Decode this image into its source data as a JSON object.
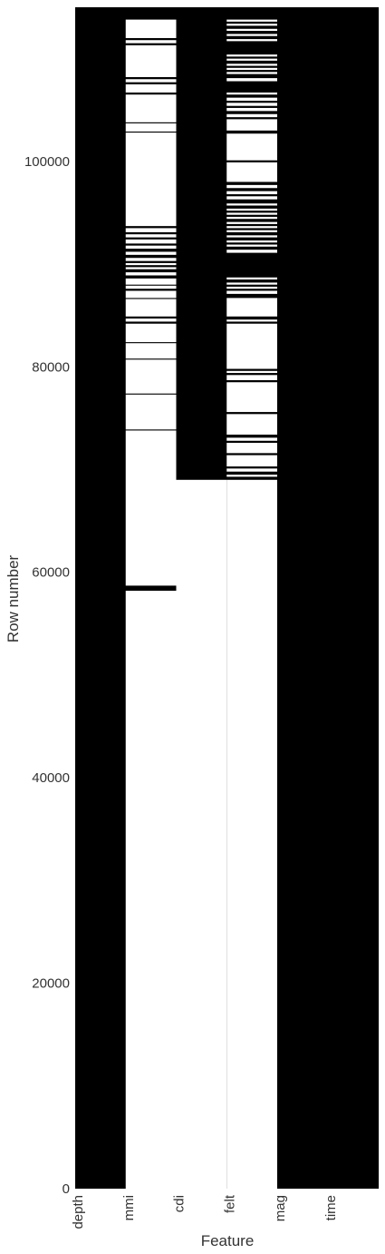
{
  "chart_data": {
    "type": "heatmap",
    "title": "",
    "xlabel": "Feature",
    "ylabel": "Row number",
    "ylim": [
      0,
      115000
    ],
    "y_ticks": [
      0,
      20000,
      40000,
      60000,
      80000,
      100000
    ],
    "grid": false,
    "legend": "none",
    "present_color": "#000000",
    "missing_color": "#ffffff",
    "columns": [
      {
        "name": "depth",
        "missing_rows": []
      },
      {
        "name": "mmi",
        "missing_rows": [
          [
            0,
            58200
          ],
          [
            58700,
            73800
          ],
          [
            73900,
            77300
          ],
          [
            77400,
            80700
          ],
          [
            80800,
            82300
          ],
          [
            82400,
            84200
          ],
          [
            84400,
            84700
          ],
          [
            84900,
            86600
          ],
          [
            86700,
            87400
          ],
          [
            87600,
            87900
          ],
          [
            88000,
            88600
          ],
          [
            88900,
            89200
          ],
          [
            89500,
            89700
          ],
          [
            89900,
            90100
          ],
          [
            90300,
            90600
          ],
          [
            90900,
            91200
          ],
          [
            91500,
            91800
          ],
          [
            92000,
            92400
          ],
          [
            92600,
            92900
          ],
          [
            93100,
            93500
          ],
          [
            93700,
            102800
          ],
          [
            102900,
            103700
          ],
          [
            103800,
            106500
          ],
          [
            106700,
            107500
          ],
          [
            107700,
            108000
          ],
          [
            108200,
            111300
          ],
          [
            111500,
            111800
          ],
          [
            112000,
            113800
          ]
        ]
      },
      {
        "name": "cdi",
        "missing_rows": [
          [
            0,
            69000
          ]
        ]
      },
      {
        "name": "felt",
        "missing_rows": [
          [
            0,
            69000
          ],
          [
            69300,
            69500
          ],
          [
            69800,
            70100
          ],
          [
            70300,
            71400
          ],
          [
            71600,
            72600
          ],
          [
            72800,
            73100
          ],
          [
            73400,
            75400
          ],
          [
            75600,
            78500
          ],
          [
            78700,
            79200
          ],
          [
            79400,
            79600
          ],
          [
            79800,
            84200
          ],
          [
            84400,
            84600
          ],
          [
            84900,
            86700
          ],
          [
            87100,
            87400
          ],
          [
            87600,
            87800
          ],
          [
            88000,
            88200
          ],
          [
            88500,
            88700
          ],
          [
            91100,
            91400
          ],
          [
            91700,
            91900
          ],
          [
            92100,
            92300
          ],
          [
            92600,
            92800
          ],
          [
            93100,
            93300
          ],
          [
            93500,
            93700
          ],
          [
            93900,
            94100
          ],
          [
            94400,
            94600
          ],
          [
            94800,
            95000
          ],
          [
            95200,
            95400
          ],
          [
            95700,
            95900
          ],
          [
            96300,
            96600
          ],
          [
            96800,
            97100
          ],
          [
            97400,
            97700
          ],
          [
            98000,
            99900
          ],
          [
            100100,
            102700
          ],
          [
            103000,
            104100
          ],
          [
            104300,
            104600
          ],
          [
            104900,
            105200
          ],
          [
            105400,
            105700
          ],
          [
            105900,
            106200
          ],
          [
            106500,
            106700
          ],
          [
            107800,
            108100
          ],
          [
            108500,
            108700
          ],
          [
            108900,
            109100
          ],
          [
            109300,
            109500
          ],
          [
            109800,
            110000
          ],
          [
            110200,
            110400
          ],
          [
            111700,
            111900
          ],
          [
            112200,
            112400
          ],
          [
            112700,
            112900
          ],
          [
            113200,
            113400
          ],
          [
            113600,
            113800
          ]
        ]
      },
      {
        "name": "mag",
        "missing_rows": []
      },
      {
        "name": "time",
        "missing_rows": []
      }
    ]
  }
}
